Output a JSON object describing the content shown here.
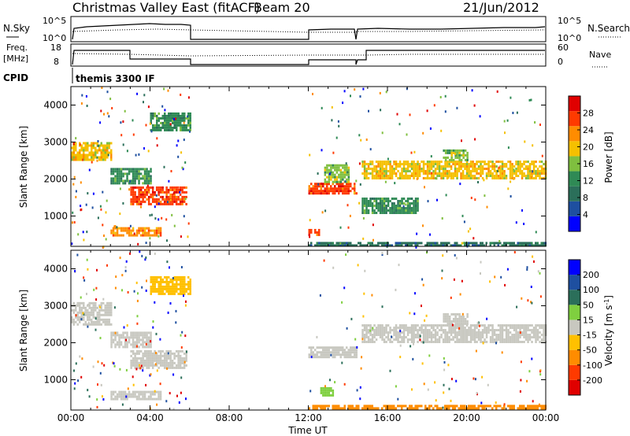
{
  "header": {
    "title": "Christmas Valley East (fitACF)",
    "beam": "Beam 20",
    "date": "21/Jun/2012"
  },
  "panels": {
    "nsky": {
      "left_label": "N.Sky",
      "right_label": "N.Search",
      "left_ticks": [
        "10^5",
        "10^0"
      ],
      "right_ticks": [
        "10^5",
        "10^0"
      ]
    },
    "freq": {
      "left_label_1": "Freq.",
      "left_label_2": "[MHz]",
      "right_label": "Nave",
      "left_ticks": [
        "18",
        "8"
      ],
      "right_ticks": [
        "60",
        "0"
      ]
    },
    "cpid": {
      "label": "CPID",
      "mode": "themis 3300 IF"
    }
  },
  "colors": {
    "power_scale": [
      "#0000ff",
      "#1e4fa0",
      "#2b6f5a",
      "#2f8a55",
      "#7fbf3f",
      "#f5c000",
      "#ff8c00",
      "#ff3a00",
      "#e00000"
    ],
    "velocity_scale": [
      "#0000ff",
      "#1e4fa0",
      "#2b6f5a",
      "#7fcf3f",
      "#c8c8c0",
      "#ffc000",
      "#ff8c00",
      "#ff3a00",
      "#e00000"
    ],
    "ground_scatter": "#c8c8c0",
    "grid": "#000000"
  },
  "chart_data": [
    {
      "type": "heatmap",
      "name": "power",
      "xlabel": "Time UT",
      "ylabel": "Slant Range [km]",
      "xlim": [
        "00:00",
        "24:00"
      ],
      "ylim": [
        180,
        4500
      ],
      "yticks": [
        1000,
        2000,
        3000,
        4000
      ],
      "data_gaps_UT": [
        [
          6.0,
          12.0
        ]
      ],
      "colorbar": {
        "label": "Power [dB]",
        "ticks": [
          4,
          8,
          12,
          16,
          20,
          24,
          28
        ],
        "range": [
          0,
          32
        ]
      },
      "bands": [
        {
          "t": [
            0.0,
            2.0
          ],
          "r": [
            2500,
            3000
          ],
          "value": 20
        },
        {
          "t": [
            2.0,
            4.0
          ],
          "r": [
            1900,
            2300
          ],
          "value": 12
        },
        {
          "t": [
            3.0,
            5.8
          ],
          "r": [
            1300,
            1800
          ],
          "value": 26
        },
        {
          "t": [
            4.0,
            6.0
          ],
          "r": [
            3300,
            3800
          ],
          "value": 10
        },
        {
          "t": [
            2.0,
            4.5
          ],
          "r": [
            500,
            700
          ],
          "value": 22
        },
        {
          "t": [
            12.0,
            14.4
          ],
          "r": [
            1600,
            1900
          ],
          "value": 26
        },
        {
          "t": [
            12.0,
            12.5
          ],
          "r": [
            500,
            650
          ],
          "value": 28
        },
        {
          "t": [
            12.8,
            14.0
          ],
          "r": [
            1900,
            2400
          ],
          "value": 14
        },
        {
          "t": [
            14.7,
            24.0
          ],
          "r": [
            2000,
            2500
          ],
          "value": 18
        },
        {
          "t": [
            18.8,
            20.0
          ],
          "r": [
            2500,
            2800
          ],
          "value": 16
        },
        {
          "t": [
            14.7,
            17.5
          ],
          "r": [
            1100,
            1500
          ],
          "value": 10
        },
        {
          "t": [
            12.0,
            24.0
          ],
          "r": [
            200,
            300
          ],
          "value": 6
        }
      ]
    },
    {
      "type": "heatmap",
      "name": "velocity",
      "xlabel": "Time UT",
      "ylabel": "Slant Range [km]",
      "xlim": [
        "00:00",
        "24:00"
      ],
      "ylim": [
        180,
        4500
      ],
      "yticks": [
        1000,
        2000,
        3000,
        4000
      ],
      "xticks": [
        "00:00",
        "04:00",
        "08:00",
        "12:00",
        "16:00",
        "20:00",
        "00:00"
      ],
      "colorbar": {
        "label": "Velocity [m s^-1]",
        "ticks": [
          200,
          100,
          50,
          15,
          -15,
          -50,
          -100,
          -200
        ]
      },
      "bands": [
        {
          "t": [
            0.0,
            2.0
          ],
          "r": [
            2500,
            3100
          ],
          "value": 0
        },
        {
          "t": [
            2.0,
            4.0
          ],
          "r": [
            1900,
            2300
          ],
          "value": 0
        },
        {
          "t": [
            3.0,
            5.8
          ],
          "r": [
            1300,
            1800
          ],
          "value": 0
        },
        {
          "t": [
            4.0,
            6.0
          ],
          "r": [
            3300,
            3800
          ],
          "value": -40
        },
        {
          "t": [
            2.0,
            4.5
          ],
          "r": [
            500,
            700
          ],
          "value": 0
        },
        {
          "t": [
            12.0,
            14.4
          ],
          "r": [
            1600,
            1900
          ],
          "value": 0
        },
        {
          "t": [
            12.6,
            13.2
          ],
          "r": [
            600,
            800
          ],
          "value": 30
        },
        {
          "t": [
            14.7,
            24.0
          ],
          "r": [
            2000,
            2500
          ],
          "value": 0
        },
        {
          "t": [
            18.8,
            20.0
          ],
          "r": [
            2500,
            2800
          ],
          "value": 0
        },
        {
          "t": [
            12.0,
            24.0
          ],
          "r": [
            200,
            320
          ],
          "value": -60
        }
      ]
    }
  ]
}
